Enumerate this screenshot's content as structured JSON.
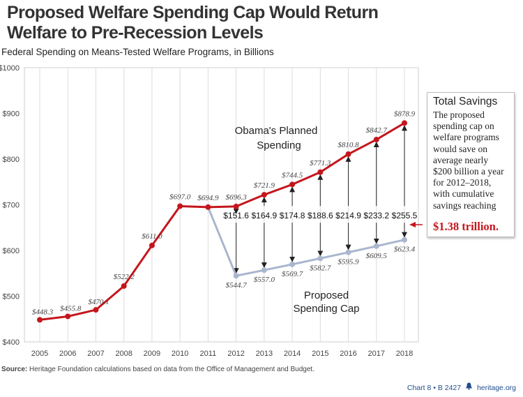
{
  "header": {
    "title": "Proposed Welfare Spending Cap Would Return Welfare to Pre-Recession Levels",
    "subtitle": "Federal Spending on Means-Tested Welfare Programs, in Billions"
  },
  "chart_data": {
    "type": "line",
    "x": [
      "2005",
      "2006",
      "2007",
      "2008",
      "2009",
      "2010",
      "2011",
      "2012",
      "2013",
      "2014",
      "2015",
      "2016",
      "2017",
      "2018"
    ],
    "ylim": [
      400,
      1000
    ],
    "yticks": [
      "$400",
      "$500",
      "$600",
      "$700",
      "$800",
      "$900",
      "$1000"
    ],
    "grid": "vertical",
    "series": [
      {
        "name": "Obama's Planned Spending",
        "color": "#c4161c",
        "x": [
          "2005",
          "2006",
          "2007",
          "2008",
          "2009",
          "2010",
          "2011",
          "2012",
          "2013",
          "2014",
          "2015",
          "2016",
          "2017",
          "2018"
        ],
        "values": [
          448.3,
          455.8,
          470.1,
          522.2,
          611.0,
          697.0,
          694.9,
          696.3,
          721.9,
          744.5,
          771.3,
          810.8,
          842.7,
          878.9
        ],
        "labels": [
          "$448.3",
          "$455.8",
          "$470.1",
          "$522.2",
          "$611.0",
          "$697.0",
          "$694.9",
          "$696.3",
          "$721.9",
          "$744.5",
          "$771.3",
          "$810.8",
          "$842.7",
          "$878.9"
        ]
      },
      {
        "name": "Proposed Spending Cap",
        "color": "#a9b6ce",
        "x": [
          "2011",
          "2012",
          "2013",
          "2014",
          "2015",
          "2016",
          "2017",
          "2018"
        ],
        "values": [
          694.9,
          544.7,
          557.0,
          569.7,
          582.7,
          595.9,
          609.5,
          623.4
        ],
        "labels": [
          "",
          "$544.7",
          "$557.0",
          "$569.7",
          "$582.7",
          "$595.9",
          "$609.5",
          "$623.4"
        ]
      }
    ],
    "differences": {
      "x": [
        "2012",
        "2013",
        "2014",
        "2015",
        "2016",
        "2017",
        "2018"
      ],
      "labels": [
        "$151.6",
        "$164.9",
        "$174.8",
        "$188.6",
        "$214.9",
        "$233.2",
        "$255.5"
      ]
    },
    "annotations": {
      "planned_line1": "Obama's Planned",
      "planned_line2": "Spending",
      "cap_line1": "Proposed",
      "cap_line2": "Spending Cap"
    }
  },
  "savings_box": {
    "title": "Total Savings",
    "text": "The proposed spending cap on welfare programs would save on average nearly $200 billion a year for 2012–2018, with cumulative savings reaching",
    "total": "$1.38 trillion."
  },
  "source": {
    "label": "Source:",
    "text": "Heritage Foundation calculations based on data from the Office of Management and Budget."
  },
  "footer": {
    "chart_ref": "Chart 8 • B 2427",
    "icon": "liberty-bell-icon",
    "site": "heritage.org"
  },
  "colors": {
    "planned": "#c4161c",
    "cap": "#a9b6ce",
    "total": "#c4161c",
    "footer": "#1e4d8c"
  }
}
